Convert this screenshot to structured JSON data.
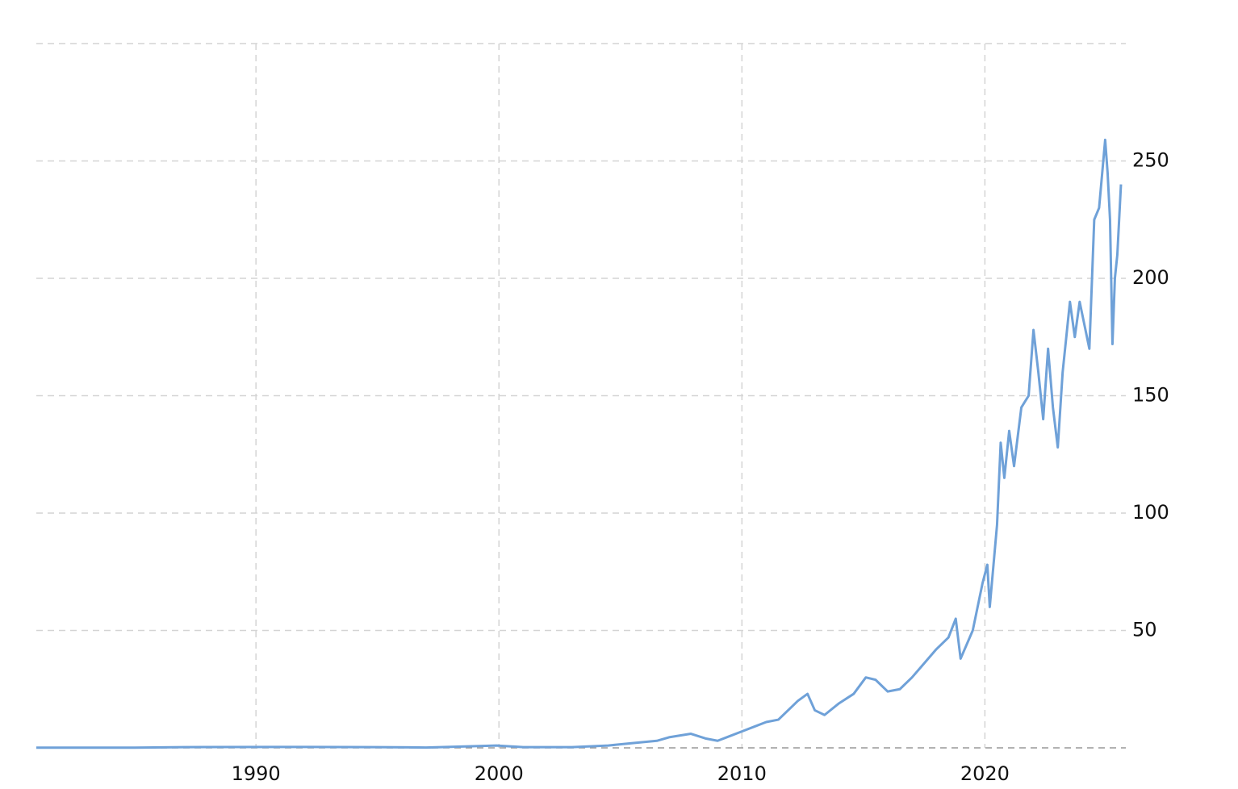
{
  "chart_data": {
    "type": "line",
    "x": [
      1980.96,
      1985,
      1987,
      1991,
      1995,
      1997,
      1999.9,
      2001,
      2003,
      2004.5,
      2005.5,
      2006.5,
      2007,
      2007.9,
      2008.5,
      2009,
      2009.5,
      2010,
      2010.5,
      2011,
      2011.5,
      2012,
      2012.3,
      2012.7,
      2013,
      2013.4,
      2014,
      2014.6,
      2015.1,
      2015.5,
      2016,
      2016.5,
      2017,
      2017.5,
      2018,
      2018.5,
      2018.8,
      2019,
      2019.5,
      2019.9,
      2020.1,
      2020.2,
      2020.5,
      2020.65,
      2020.8,
      2021.0,
      2021.2,
      2021.5,
      2021.8,
      2022.0,
      2022.2,
      2022.4,
      2022.6,
      2022.8,
      2023.0,
      2023.2,
      2023.5,
      2023.7,
      2023.9,
      2024.1,
      2024.3,
      2024.5,
      2024.7,
      2024.95,
      2025.05,
      2025.15,
      2025.25,
      2025.35,
      2025.45,
      2025.6
    ],
    "series": [
      {
        "color": "#6fa1d8",
        "values": [
          0.1,
          0.1,
          0.3,
          0.4,
          0.3,
          0.15,
          1.0,
          0.3,
          0.3,
          1,
          2,
          3,
          4.5,
          6,
          4,
          3,
          5,
          7,
          9,
          11,
          12,
          17,
          20,
          23,
          16,
          14,
          19,
          23,
          30,
          29,
          24,
          25,
          30,
          36,
          42,
          47,
          55,
          38,
          50,
          70,
          78,
          60,
          95,
          130,
          115,
          135,
          120,
          145,
          150,
          178,
          160,
          140,
          170,
          145,
          128,
          160,
          190,
          175,
          190,
          180,
          170,
          225,
          230,
          259,
          245,
          225,
          172,
          200,
          210,
          240
        ]
      }
    ],
    "xlim": [
      1980.96,
      2025.8
    ],
    "xticks": [
      1990,
      2000,
      2010,
      2020
    ],
    "ylim": [
      0,
      300
    ],
    "yticks": [
      50,
      100,
      150,
      200,
      250
    ],
    "grid": true
  }
}
